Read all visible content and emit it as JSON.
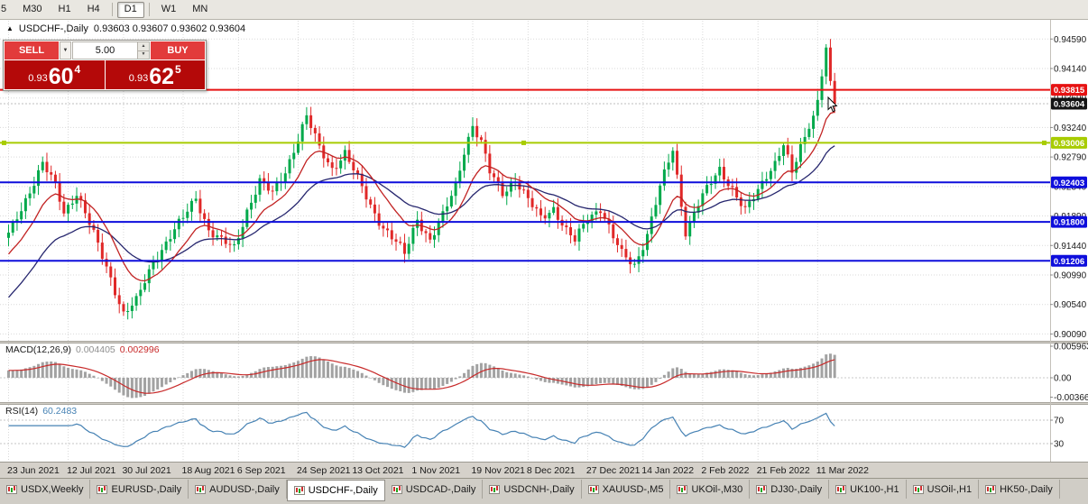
{
  "icons": {
    "dropdown": "▼",
    "up": "▲",
    "down": "▼"
  },
  "toolbar": {
    "buttons": [
      {
        "label": "5"
      },
      {
        "label": "M30"
      },
      {
        "label": "H1"
      },
      {
        "label": "H4",
        "sep_after": true
      },
      {
        "label": "D1",
        "active": true,
        "sep_after": true
      },
      {
        "label": "W1"
      },
      {
        "label": "MN"
      }
    ]
  },
  "chart": {
    "title_arrow": "▲",
    "title": "USDCHF-,Daily",
    "quote_line": "0.93603 0.93607 0.93602 0.93604"
  },
  "trade_panel": {
    "sell_label": "SELL",
    "buy_label": "BUY",
    "volume": "5.00",
    "sell_price": {
      "small": "0.93",
      "big": "60",
      "sup": "4"
    },
    "buy_price": {
      "small": "0.93",
      "big": "62",
      "sup": "5"
    }
  },
  "price_axis": {
    "labels": [
      "0.94590",
      "0.94140",
      "0.93690",
      "0.93240",
      "0.92790",
      "0.92340",
      "0.91890",
      "0.91440",
      "0.90990",
      "0.90540",
      "0.90090"
    ]
  },
  "hlines": [
    {
      "price": "0.93815",
      "color": "#e61212",
      "width": 2
    },
    {
      "price": "0.93006",
      "color": "#a8cc02",
      "width": 2,
      "handles": true
    },
    {
      "price": "0.92403",
      "color": "#0e0edc",
      "width": 2
    },
    {
      "price": "0.91800",
      "color": "#0e0edc",
      "width": 2
    },
    {
      "price": "0.91206",
      "color": "#0e0edc",
      "width": 2
    }
  ],
  "current_tag": {
    "text": "0.93604",
    "color": "#141414"
  },
  "macd": {
    "label": "MACD(12,26,9)",
    "main_value": "0.004405",
    "signal_value": "0.002996",
    "axis": [
      "0.005963",
      "0.00",
      "-0.003664"
    ]
  },
  "rsi": {
    "label": "RSI(14)",
    "value": "60.2483",
    "levels": [
      "70",
      "30"
    ]
  },
  "date_axis": [
    "23 Jun 2021",
    "12 Jul 2021",
    "30 Jul 2021",
    "18 Aug 2021",
    "6 Sep 2021",
    "24 Sep 2021",
    "13 Oct 2021",
    "1 Nov 2021",
    "19 Nov 2021",
    "8 Dec 2021",
    "27 Dec 2021",
    "14 Jan 2022",
    "2 Feb 2022",
    "21 Feb 2022",
    "11 Mar 2022"
  ],
  "tabs": [
    {
      "label": "USDX,Weekly"
    },
    {
      "label": "EURUSD-,Daily"
    },
    {
      "label": "AUDUSD-,Daily"
    },
    {
      "label": "USDCHF-,Daily",
      "active": true
    },
    {
      "label": "USDCAD-,Daily"
    },
    {
      "label": "USDCNH-,Daily"
    },
    {
      "label": "XAUUSD-,M5"
    },
    {
      "label": "UKOil-,M30"
    },
    {
      "label": "DJ30-,Daily"
    },
    {
      "label": "UK100-,H1"
    },
    {
      "label": "USOil-,H1"
    },
    {
      "label": "HK50-,Daily"
    }
  ],
  "colors": {
    "candle_up": "#00a94b",
    "candle_down": "#e02828",
    "grid": "#d9d9d9",
    "macd_hist": "#a2a2a2",
    "macd_signal": "#c82a2a",
    "rsi": "#4682b4",
    "tab_icon_up": "#1fa51f",
    "tab_icon_down": "#d03030"
  },
  "chart_data": {
    "type": "candlestick",
    "symbol": "USDCHF-",
    "timeframe": "Daily",
    "quote": {
      "open": 0.93603,
      "high": 0.93607,
      "low": 0.93602,
      "close": 0.93604
    },
    "current_price": 0.93604,
    "price_range": [
      0.9,
      0.948
    ],
    "n_candles": 195,
    "x_tick_labels": [
      "23 Jun 2021",
      "12 Jul 2021",
      "30 Jul 2021",
      "18 Aug 2021",
      "6 Sep 2021",
      "24 Sep 2021",
      "13 Oct 2021",
      "1 Nov 2021",
      "19 Nov 2021",
      "8 Dec 2021",
      "27 Dec 2021",
      "14 Jan 2022",
      "2 Feb 2022",
      "21 Feb 2022",
      "11 Mar 2022"
    ],
    "y_tick_labels": [
      "0.94590",
      "0.94140",
      "0.93690",
      "0.93240",
      "0.92790",
      "0.92340",
      "0.91890",
      "0.91440",
      "0.90990",
      "0.90540",
      "0.90090"
    ],
    "levels": [
      0.93815,
      0.93006,
      0.92403,
      0.918,
      0.91206
    ],
    "close_anchors": [
      [
        0,
        0.916
      ],
      [
        4,
        0.9215
      ],
      [
        8,
        0.9268
      ],
      [
        11,
        0.9235
      ],
      [
        13,
        0.9195
      ],
      [
        16,
        0.9225
      ],
      [
        20,
        0.916
      ],
      [
        24,
        0.9095
      ],
      [
        27,
        0.904
      ],
      [
        30,
        0.9058
      ],
      [
        34,
        0.912
      ],
      [
        38,
        0.9158
      ],
      [
        41,
        0.9185
      ],
      [
        44,
        0.9218
      ],
      [
        47,
        0.9168
      ],
      [
        50,
        0.915
      ],
      [
        53,
        0.914
      ],
      [
        56,
        0.9198
      ],
      [
        59,
        0.9242
      ],
      [
        62,
        0.9222
      ],
      [
        65,
        0.9258
      ],
      [
        68,
        0.9308
      ],
      [
        70,
        0.934
      ],
      [
        73,
        0.9292
      ],
      [
        76,
        0.9262
      ],
      [
        79,
        0.9285
      ],
      [
        82,
        0.9245
      ],
      [
        85,
        0.9205
      ],
      [
        88,
        0.9172
      ],
      [
        91,
        0.9148
      ],
      [
        93,
        0.913
      ],
      [
        96,
        0.9186
      ],
      [
        99,
        0.9152
      ],
      [
        102,
        0.9188
      ],
      [
        105,
        0.9235
      ],
      [
        107,
        0.929
      ],
      [
        109,
        0.9328
      ],
      [
        111,
        0.93
      ],
      [
        113,
        0.9255
      ],
      [
        116,
        0.9225
      ],
      [
        119,
        0.9245
      ],
      [
        122,
        0.9212
      ],
      [
        125,
        0.9186
      ],
      [
        128,
        0.9202
      ],
      [
        131,
        0.9166
      ],
      [
        133,
        0.915
      ],
      [
        136,
        0.9186
      ],
      [
        139,
        0.9202
      ],
      [
        142,
        0.9156
      ],
      [
        144,
        0.913
      ],
      [
        147,
        0.9114
      ],
      [
        150,
        0.9162
      ],
      [
        153,
        0.9232
      ],
      [
        156,
        0.929
      ],
      [
        159,
        0.9166
      ],
      [
        162,
        0.9208
      ],
      [
        167,
        0.926
      ],
      [
        170,
        0.9232
      ],
      [
        173,
        0.9196
      ],
      [
        176,
        0.9226
      ],
      [
        178,
        0.9252
      ],
      [
        180,
        0.9272
      ],
      [
        182,
        0.93
      ],
      [
        184,
        0.9252
      ],
      [
        186,
        0.9292
      ],
      [
        188,
        0.9322
      ],
      [
        189,
        0.9342
      ],
      [
        190,
        0.9366
      ],
      [
        191,
        0.9402
      ],
      [
        192,
        0.9446
      ],
      [
        193,
        0.9395
      ],
      [
        194,
        0.936
      ]
    ],
    "overlays": {
      "ma_fast": {
        "period": 12,
        "color": "#c22222"
      },
      "ma_slow": {
        "period": 30,
        "color": "#26266e"
      }
    },
    "indicators": {
      "macd": {
        "fast": 12,
        "slow": 26,
        "signal": 9,
        "current_main": 0.004405,
        "current_signal": 0.002996,
        "axis_max": 0.005963,
        "axis_min": -0.003664
      },
      "rsi": {
        "period": 14,
        "current": 60.2483,
        "levels": [
          70,
          30
        ]
      }
    }
  }
}
